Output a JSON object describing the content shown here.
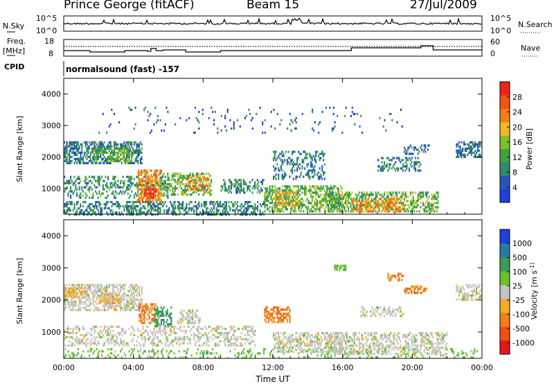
{
  "header": {
    "station": "Prince George (fitACF)",
    "beam": "Beam 15",
    "date": "27/Jul/2009"
  },
  "status_panels": {
    "nsky_label": "N.Sky",
    "nsky_ticks": [
      "10^5",
      "10^0"
    ],
    "nsearch_label": "N.Search",
    "nsearch_ticks": [
      "10^5",
      "10^0"
    ],
    "freq_label": "Freq.",
    "freq_unit": "[MHz]",
    "freq_ticks": [
      "18",
      "8"
    ],
    "freq_range": [
      8,
      18
    ],
    "nave_label": "Nave",
    "nave_ticks": [
      "60",
      "0"
    ],
    "cpid_label": "CPID",
    "cpid_text": "normalsound (fast) -157"
  },
  "colors": {
    "power_scale": [
      "#1f3fd8",
      "#2a55b8",
      "#2f8a6e",
      "#3ea046",
      "#7fbf2a",
      "#f2b826",
      "#f07e1c",
      "#f05418",
      "#e8261a"
    ],
    "velocity_scale": [
      "#1f3fd8",
      "#2a7aa0",
      "#3a9a5a",
      "#66c22f",
      "#c4c4c4",
      "#f0ae26",
      "#f07e1c",
      "#f05018",
      "#e81818"
    ]
  },
  "chart_data": [
    {
      "type": "heatmap",
      "quantity": "power",
      "ylabel": "Slant Range [km]",
      "y_ticks": [
        1000,
        2000,
        3000,
        4000
      ],
      "ylim": [
        180,
        4500
      ],
      "colorbar_label": "Power [dB]",
      "colorbar_ticks": [
        4,
        8,
        12,
        16,
        20,
        24,
        28
      ],
      "colorbar_range": [
        0,
        32
      ],
      "x_tick_labels": [
        "00:00",
        "04:00",
        "08:00",
        "12:00",
        "16:00",
        "20:00",
        "00:00"
      ],
      "xlabel": "Time UT",
      "regions": [
        {
          "t": [
            0.0,
            4.5
          ],
          "r": [
            1800,
            2500
          ],
          "v": 8,
          "d": 0.55
        },
        {
          "t": [
            1.5,
            4.0
          ],
          "r": [
            1900,
            2300
          ],
          "v": 14,
          "d": 0.5
        },
        {
          "t": [
            0.0,
            6.0
          ],
          "r": [
            700,
            1400
          ],
          "v": 10,
          "d": 0.35
        },
        {
          "t": [
            4.2,
            5.6
          ],
          "r": [
            600,
            1600
          ],
          "v": 22,
          "d": 0.6
        },
        {
          "t": [
            4.6,
            5.3
          ],
          "r": [
            700,
            1000
          ],
          "v": 28,
          "d": 0.7
        },
        {
          "t": [
            5.5,
            8.5
          ],
          "r": [
            800,
            1500
          ],
          "v": 14,
          "d": 0.45
        },
        {
          "t": [
            7.0,
            8.3
          ],
          "r": [
            1000,
            1400
          ],
          "v": 24,
          "d": 0.4
        },
        {
          "t": [
            0.0,
            11.5
          ],
          "r": [
            200,
            600
          ],
          "v": 9,
          "d": 0.45
        },
        {
          "t": [
            9.0,
            11.5
          ],
          "r": [
            900,
            1300
          ],
          "v": 10,
          "d": 0.35
        },
        {
          "t": [
            11.5,
            16.0
          ],
          "r": [
            250,
            1100
          ],
          "v": 14,
          "d": 0.55
        },
        {
          "t": [
            12.0,
            13.5
          ],
          "r": [
            500,
            900
          ],
          "v": 20,
          "d": 0.5
        },
        {
          "t": [
            15.0,
            21.5
          ],
          "r": [
            250,
            900
          ],
          "v": 14,
          "d": 0.5
        },
        {
          "t": [
            16.5,
            19.5
          ],
          "r": [
            300,
            700
          ],
          "v": 22,
          "d": 0.45
        },
        {
          "t": [
            12.0,
            15.0
          ],
          "r": [
            1300,
            2200
          ],
          "v": 8,
          "d": 0.3
        },
        {
          "t": [
            18.0,
            20.5
          ],
          "r": [
            1600,
            2000
          ],
          "v": 8,
          "d": 0.35
        },
        {
          "t": [
            19.5,
            21.0
          ],
          "r": [
            2100,
            2400
          ],
          "v": 7,
          "d": 0.3
        },
        {
          "t": [
            22.5,
            24.0
          ],
          "r": [
            2000,
            2500
          ],
          "v": 8,
          "d": 0.55
        },
        {
          "t": [
            2.0,
            20.0
          ],
          "r": [
            2800,
            3600
          ],
          "v": 6,
          "d": 0.04
        }
      ]
    },
    {
      "type": "heatmap",
      "quantity": "velocity",
      "ylabel": "Slant Range [km]",
      "y_ticks": [
        1000,
        2000,
        3000,
        4000
      ],
      "ylim": [
        180,
        4500
      ],
      "colorbar_label": "Velocity [m s^-1]",
      "colorbar_ticks": [
        1000,
        500,
        100,
        25,
        -25,
        -100,
        -500,
        -1000
      ],
      "x_tick_labels": [
        "00:00",
        "04:00",
        "08:00",
        "12:00",
        "16:00",
        "20:00",
        "00:00"
      ],
      "xlabel": "Time UT",
      "regions": [
        {
          "t": [
            0.0,
            4.5
          ],
          "r": [
            1700,
            2500
          ],
          "cls": 4,
          "d": 0.5
        },
        {
          "t": [
            0.0,
            1.2
          ],
          "r": [
            2100,
            2400
          ],
          "cls": 5,
          "d": 0.5
        },
        {
          "t": [
            2.0,
            3.2
          ],
          "r": [
            1900,
            2200
          ],
          "cls": 5,
          "d": 0.4
        },
        {
          "t": [
            4.3,
            5.3
          ],
          "r": [
            1300,
            1900
          ],
          "cls": 6,
          "d": 0.55
        },
        {
          "t": [
            5.2,
            6.2
          ],
          "r": [
            1200,
            1800
          ],
          "cls": 2,
          "d": 0.5
        },
        {
          "t": [
            6.5,
            7.8
          ],
          "r": [
            1300,
            1700
          ],
          "cls": 4,
          "d": 0.35
        },
        {
          "t": [
            0.0,
            11.0
          ],
          "r": [
            600,
            1200
          ],
          "cls": 4,
          "d": 0.35
        },
        {
          "t": [
            0.0,
            24.0
          ],
          "r": [
            200,
            500
          ],
          "cls": 3,
          "d": 0.18
        },
        {
          "t": [
            11.5,
            13.0
          ],
          "r": [
            1300,
            1800
          ],
          "cls": 6,
          "d": 0.55
        },
        {
          "t": [
            12.0,
            16.0
          ],
          "r": [
            400,
            1000
          ],
          "cls": 4,
          "d": 0.5
        },
        {
          "t": [
            15.0,
            22.0
          ],
          "r": [
            300,
            1000
          ],
          "cls": 4,
          "d": 0.45
        },
        {
          "t": [
            17.0,
            19.5
          ],
          "r": [
            1500,
            1800
          ],
          "cls": 4,
          "d": 0.35
        },
        {
          "t": [
            19.5,
            20.8
          ],
          "r": [
            2200,
            2450
          ],
          "cls": 6,
          "d": 0.55
        },
        {
          "t": [
            18.5,
            19.5
          ],
          "r": [
            2600,
            2850
          ],
          "cls": 6,
          "d": 0.35
        },
        {
          "t": [
            22.5,
            24.0
          ],
          "r": [
            2000,
            2500
          ],
          "cls": 4,
          "d": 0.5
        },
        {
          "t": [
            15.5,
            16.2
          ],
          "r": [
            2950,
            3100
          ],
          "cls": 3,
          "d": 0.6
        }
      ]
    }
  ]
}
